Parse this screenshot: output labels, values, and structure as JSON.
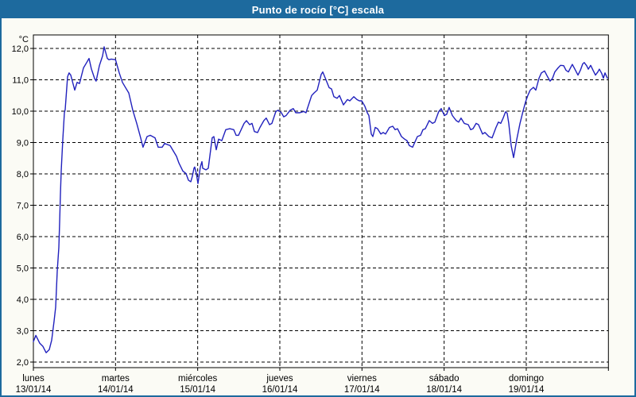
{
  "window": {
    "title": "Punto de rocío [°C] escala"
  },
  "chart_data": {
    "type": "line",
    "title": "Punto de rocío [°C] escala",
    "unit_label": "°C",
    "legend_position": "none",
    "grid": "dashed",
    "colors": {
      "titlebar_bg": "#1d6a9e",
      "titlebar_text": "#ffffff",
      "page_bg": "#fbfbf5",
      "plot_bg": "#ffffff",
      "axis": "#000000",
      "line": "#2121bd"
    },
    "x_axis": {
      "range_days": [
        0,
        7
      ],
      "days": [
        {
          "name": "lunes",
          "date": "13/01/14"
        },
        {
          "name": "martes",
          "date": "14/01/14"
        },
        {
          "name": "miércoles",
          "date": "15/01/14"
        },
        {
          "name": "jueves",
          "date": "16/01/14"
        },
        {
          "name": "viernes",
          "date": "17/01/14"
        },
        {
          "name": "sábado",
          "date": "18/01/14"
        },
        {
          "name": "domingo",
          "date": "19/01/14"
        }
      ]
    },
    "y_axis": {
      "min": 2,
      "max": 12,
      "step": 1,
      "tick_labels": [
        "2,0",
        "3,0",
        "4,0",
        "5,0",
        "6,0",
        "7,0",
        "8,0",
        "9,0",
        "10,0",
        "11,0",
        "12,0"
      ]
    },
    "series": [
      {
        "name": "Punto de rocío",
        "points": [
          [
            0,
            2.65
          ],
          [
            0.03,
            2.85
          ],
          [
            0.077,
            2.6
          ],
          [
            0.116,
            2.5
          ],
          [
            0.155,
            2.3
          ],
          [
            0.194,
            2.4
          ],
          [
            0.223,
            2.7
          ],
          [
            0.252,
            3.3
          ],
          [
            0.271,
            3.75
          ],
          [
            0.29,
            4.9
          ],
          [
            0.31,
            5.65
          ],
          [
            0.319,
            6.45
          ],
          [
            0.329,
            7.35
          ],
          [
            0.339,
            8.1
          ],
          [
            0.358,
            9.1
          ],
          [
            0.377,
            9.95
          ],
          [
            0.387,
            10.05
          ],
          [
            0.416,
            11.1
          ],
          [
            0.435,
            11.22
          ],
          [
            0.455,
            11.15
          ],
          [
            0.503,
            10.67
          ],
          [
            0.532,
            10.92
          ],
          [
            0.561,
            10.88
          ],
          [
            0.61,
            11.38
          ],
          [
            0.648,
            11.55
          ],
          [
            0.677,
            11.68
          ],
          [
            0.706,
            11.35
          ],
          [
            0.745,
            11.04
          ],
          [
            0.764,
            10.96
          ],
          [
            0.803,
            11.45
          ],
          [
            0.842,
            11.76
          ],
          [
            0.861,
            12.05
          ],
          [
            0.9,
            11.68
          ],
          [
            0.919,
            11.64
          ],
          [
            0.948,
            11.66
          ],
          [
            1,
            11.64
          ],
          [
            1.045,
            11.22
          ],
          [
            1.084,
            10.92
          ],
          [
            1.113,
            10.79
          ],
          [
            1.161,
            10.58
          ],
          [
            1.21,
            10.03
          ],
          [
            1.258,
            9.61
          ],
          [
            1.306,
            9.15
          ],
          [
            1.335,
            8.85
          ],
          [
            1.384,
            9.19
          ],
          [
            1.423,
            9.23
          ],
          [
            1.481,
            9.15
          ],
          [
            1.519,
            8.85
          ],
          [
            1.568,
            8.85
          ],
          [
            1.597,
            8.97
          ],
          [
            1.665,
            8.9
          ],
          [
            1.742,
            8.56
          ],
          [
            1.771,
            8.35
          ],
          [
            1.819,
            8.09
          ],
          [
            1.858,
            8.01
          ],
          [
            1.887,
            7.8
          ],
          [
            1.916,
            7.75
          ],
          [
            1.935,
            7.92
          ],
          [
            1.955,
            8.18
          ],
          [
            1.964,
            8.22
          ],
          [
            1.984,
            8.01
          ],
          [
            2.003,
            7.69
          ],
          [
            2.032,
            8.22
          ],
          [
            2.052,
            8.39
          ],
          [
            2.061,
            8.18
          ],
          [
            2.1,
            8.13
          ],
          [
            2.129,
            8.18
          ],
          [
            2.177,
            9.15
          ],
          [
            2.197,
            9.19
          ],
          [
            2.226,
            8.77
          ],
          [
            2.255,
            9.11
          ],
          [
            2.294,
            9.06
          ],
          [
            2.342,
            9.41
          ],
          [
            2.39,
            9.44
          ],
          [
            2.439,
            9.41
          ],
          [
            2.468,
            9.23
          ],
          [
            2.497,
            9.23
          ],
          [
            2.565,
            9.61
          ],
          [
            2.594,
            9.7
          ],
          [
            2.632,
            9.57
          ],
          [
            2.661,
            9.61
          ],
          [
            2.69,
            9.35
          ],
          [
            2.729,
            9.32
          ],
          [
            2.758,
            9.48
          ],
          [
            2.806,
            9.7
          ],
          [
            2.835,
            9.78
          ],
          [
            2.874,
            9.57
          ],
          [
            2.903,
            9.61
          ],
          [
            2.952,
            9.99
          ],
          [
            2.981,
            10.03
          ],
          [
            3.019,
            9.95
          ],
          [
            3.048,
            9.82
          ],
          [
            3.077,
            9.86
          ],
          [
            3.126,
            10.03
          ],
          [
            3.165,
            10.08
          ],
          [
            3.194,
            9.95
          ],
          [
            3.242,
            9.95
          ],
          [
            3.29,
            9.99
          ],
          [
            3.319,
            9.95
          ],
          [
            3.387,
            10.5
          ],
          [
            3.416,
            10.58
          ],
          [
            3.455,
            10.67
          ],
          [
            3.503,
            11.17
          ],
          [
            3.523,
            11.25
          ],
          [
            3.561,
            11
          ],
          [
            3.6,
            10.75
          ],
          [
            3.629,
            10.71
          ],
          [
            3.658,
            10.46
          ],
          [
            3.697,
            10.41
          ],
          [
            3.726,
            10.5
          ],
          [
            3.774,
            10.2
          ],
          [
            3.823,
            10.37
          ],
          [
            3.852,
            10.33
          ],
          [
            3.9,
            10.46
          ],
          [
            3.939,
            10.37
          ],
          [
            3.968,
            10.33
          ],
          [
            3.997,
            10.33
          ],
          [
            4.035,
            10.16
          ],
          [
            4.065,
            9.95
          ],
          [
            4.084,
            9.86
          ],
          [
            4.113,
            9.27
          ],
          [
            4.132,
            9.19
          ],
          [
            4.161,
            9.48
          ],
          [
            4.19,
            9.44
          ],
          [
            4.229,
            9.27
          ],
          [
            4.258,
            9.32
          ],
          [
            4.287,
            9.27
          ],
          [
            4.335,
            9.48
          ],
          [
            4.374,
            9.52
          ],
          [
            4.403,
            9.41
          ],
          [
            4.432,
            9.44
          ],
          [
            4.481,
            9.19
          ],
          [
            4.519,
            9.11
          ],
          [
            4.548,
            9.06
          ],
          [
            4.577,
            8.9
          ],
          [
            4.616,
            8.85
          ],
          [
            4.645,
            9.02
          ],
          [
            4.674,
            9.19
          ],
          [
            4.713,
            9.23
          ],
          [
            4.742,
            9.41
          ],
          [
            4.771,
            9.44
          ],
          [
            4.819,
            9.7
          ],
          [
            4.858,
            9.61
          ],
          [
            4.887,
            9.65
          ],
          [
            4.935,
            9.99
          ],
          [
            4.965,
            10.08
          ],
          [
            5.003,
            9.86
          ],
          [
            5.032,
            9.9
          ],
          [
            5.061,
            10.12
          ],
          [
            5.1,
            9.86
          ],
          [
            5.148,
            9.7
          ],
          [
            5.177,
            9.65
          ],
          [
            5.206,
            9.78
          ],
          [
            5.245,
            9.61
          ],
          [
            5.294,
            9.57
          ],
          [
            5.323,
            9.41
          ],
          [
            5.352,
            9.44
          ],
          [
            5.39,
            9.61
          ],
          [
            5.419,
            9.57
          ],
          [
            5.468,
            9.27
          ],
          [
            5.497,
            9.32
          ],
          [
            5.545,
            9.19
          ],
          [
            5.584,
            9.15
          ],
          [
            5.632,
            9.48
          ],
          [
            5.661,
            9.65
          ],
          [
            5.69,
            9.61
          ],
          [
            5.719,
            9.78
          ],
          [
            5.748,
            9.98
          ],
          [
            5.768,
            9.93
          ],
          [
            5.787,
            9.6
          ],
          [
            5.816,
            8.9
          ],
          [
            5.845,
            8.52
          ],
          [
            5.884,
            9.1
          ],
          [
            5.923,
            9.6
          ],
          [
            5.961,
            10
          ],
          [
            5.99,
            10.28
          ],
          [
            6.019,
            10.5
          ],
          [
            6.048,
            10.67
          ],
          [
            6.087,
            10.76
          ],
          [
            6.116,
            10.67
          ],
          [
            6.155,
            11.05
          ],
          [
            6.184,
            11.22
          ],
          [
            6.223,
            11.28
          ],
          [
            6.261,
            11.09
          ],
          [
            6.29,
            10.96
          ],
          [
            6.319,
            11.04
          ],
          [
            6.348,
            11.25
          ],
          [
            6.387,
            11.38
          ],
          [
            6.416,
            11.46
          ],
          [
            6.455,
            11.45
          ],
          [
            6.484,
            11.3
          ],
          [
            6.513,
            11.25
          ],
          [
            6.542,
            11.4
          ],
          [
            6.561,
            11.49
          ],
          [
            6.59,
            11.35
          ],
          [
            6.629,
            11.15
          ],
          [
            6.658,
            11.3
          ],
          [
            6.687,
            11.51
          ],
          [
            6.706,
            11.55
          ],
          [
            6.735,
            11.45
          ],
          [
            6.755,
            11.34
          ],
          [
            6.784,
            11.46
          ],
          [
            6.813,
            11.3
          ],
          [
            6.842,
            11.15
          ],
          [
            6.871,
            11.25
          ],
          [
            6.89,
            11.34
          ],
          [
            6.919,
            11.2
          ],
          [
            6.939,
            11.05
          ],
          [
            6.958,
            11.22
          ],
          [
            6.987,
            11.05
          ]
        ]
      }
    ]
  }
}
